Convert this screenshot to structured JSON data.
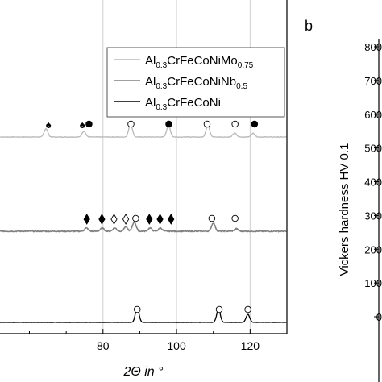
{
  "chart_data": [
    {
      "type": "line",
      "xlabel": "2Θ in °",
      "xlim": [
        52,
        130
      ],
      "xticks": [
        80,
        100,
        120
      ],
      "tick_labels": [
        "80",
        "100",
        "120"
      ],
      "grid": true,
      "legend": "top-right",
      "series": [
        {
          "name": "Al0.3CrFeCoNiMo0.75",
          "legend_base": "Al",
          "legend_parts": [
            {
              "t": "Al",
              "sub": false
            },
            {
              "t": "0.3",
              "sub": true
            },
            {
              "t": "CrFeCoNiMo",
              "sub": false
            },
            {
              "t": "0.75",
              "sub": true
            }
          ],
          "color": "#b8b8b8",
          "baseline": 0.0,
          "peaks": [
            {
              "x": 64.5,
              "h": 2.3
            },
            {
              "x": 74.8,
              "h": 1.6
            },
            {
              "x": 87.5,
              "h": 3.6
            },
            {
              "x": 97.8,
              "h": 3.2
            },
            {
              "x": 108.5,
              "h": 3.2
            },
            {
              "x": 115.8,
              "h": 1.1
            },
            {
              "x": 120.8,
              "h": 1.0
            }
          ],
          "markers": [
            {
              "x": 65.2,
              "symbol": "spade",
              "filled": true
            },
            {
              "x": 74.4,
              "symbol": "spade",
              "filled": true
            },
            {
              "x": 76.2,
              "symbol": "circle",
              "filled": true
            },
            {
              "x": 87.6,
              "symbol": "circle",
              "filled": false
            },
            {
              "x": 97.9,
              "symbol": "circle",
              "filled": true
            },
            {
              "x": 108.3,
              "symbol": "circle",
              "filled": false
            },
            {
              "x": 115.9,
              "symbol": "circle",
              "filled": false
            },
            {
              "x": 121.2,
              "symbol": "circle",
              "filled": true
            }
          ]
        },
        {
          "name": "Al0.3CrFeCoNiNb0.5",
          "legend_parts": [
            {
              "t": "Al",
              "sub": false
            },
            {
              "t": "0.3",
              "sub": true
            },
            {
              "t": "CrFeCoNiNb",
              "sub": false
            },
            {
              "t": "0.5",
              "sub": true
            }
          ],
          "color": "#808080",
          "baseline": 0.0,
          "peaks": [
            {
              "x": 75.5,
              "h": 0.9
            },
            {
              "x": 79.8,
              "h": 0.9
            },
            {
              "x": 83.2,
              "h": 0.9
            },
            {
              "x": 86.2,
              "h": 1.2
            },
            {
              "x": 88.5,
              "h": 2.6
            },
            {
              "x": 92.8,
              "h": 0.9
            },
            {
              "x": 95.6,
              "h": 0.9
            },
            {
              "x": 110.0,
              "h": 2.3
            },
            {
              "x": 116.2,
              "h": 0.7
            }
          ],
          "markers": [
            {
              "x": 75.6,
              "symbol": "diamond",
              "filled": true
            },
            {
              "x": 79.7,
              "symbol": "diamond",
              "filled": true
            },
            {
              "x": 83.0,
              "symbol": "diamond",
              "filled": false
            },
            {
              "x": 86.2,
              "symbol": "diamond",
              "filled": false
            },
            {
              "x": 88.9,
              "symbol": "circle",
              "filled": false
            },
            {
              "x": 92.6,
              "symbol": "diamond",
              "filled": true
            },
            {
              "x": 95.5,
              "symbol": "diamond",
              "filled": true
            },
            {
              "x": 98.5,
              "symbol": "diamond",
              "filled": true
            },
            {
              "x": 109.6,
              "symbol": "circle",
              "filled": false
            },
            {
              "x": 115.9,
              "symbol": "circle",
              "filled": false
            }
          ]
        },
        {
          "name": "Al0.3CrFeCoNi",
          "legend_parts": [
            {
              "t": "Al",
              "sub": false
            },
            {
              "t": "0.3",
              "sub": true
            },
            {
              "t": "CrFeCoNi",
              "sub": false
            }
          ],
          "color": "#000000",
          "baseline": 0.0,
          "peaks": [
            {
              "x": 89.3,
              "h": 4.0
            },
            {
              "x": 111.4,
              "h": 3.6
            },
            {
              "x": 119.4,
              "h": 2.2
            }
          ],
          "markers": [
            {
              "x": 89.3,
              "symbol": "circle",
              "filled": false
            },
            {
              "x": 111.6,
              "symbol": "circle",
              "filled": false
            },
            {
              "x": 119.4,
              "symbol": "circle",
              "filled": false
            }
          ]
        }
      ]
    },
    {
      "type": "bar",
      "panel_label": "b",
      "ylabel": "Vickers hardness HV 0.1",
      "ylim": [
        0,
        800
      ],
      "yticks": [
        0,
        100,
        200,
        300,
        400,
        500,
        600,
        700,
        800
      ],
      "tick_labels": [
        "0",
        "100",
        "200",
        "300",
        "400",
        "500",
        "600",
        "700",
        "800"
      ]
    }
  ]
}
